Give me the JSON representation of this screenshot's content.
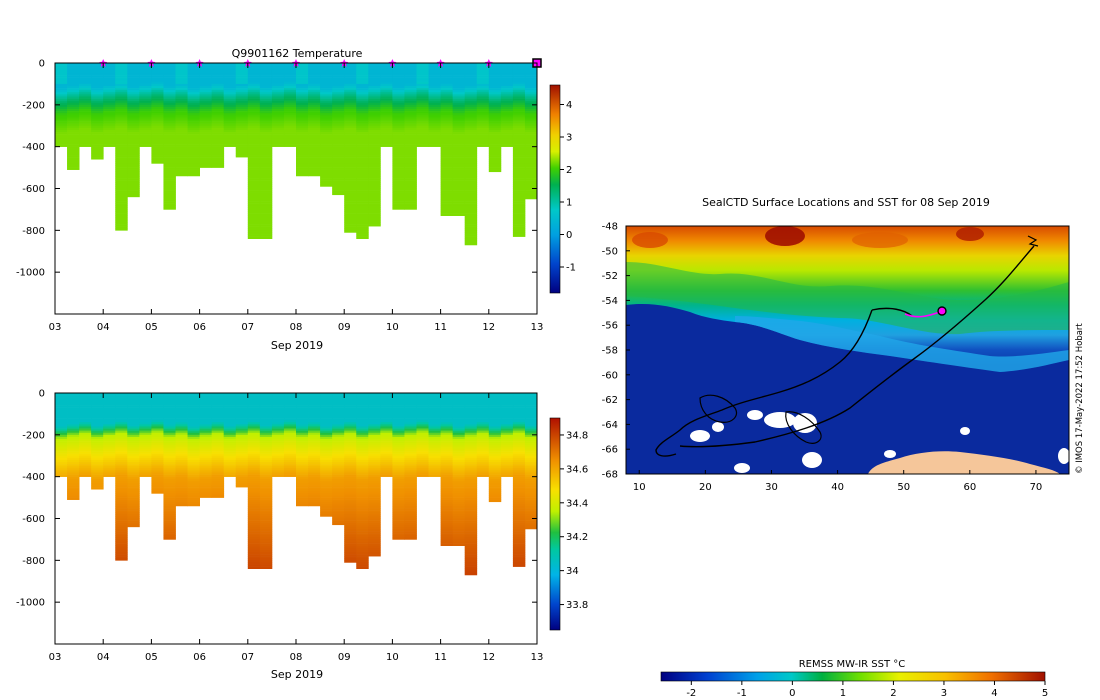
{
  "chart_data": [
    {
      "type": "heatmap",
      "title": "Q9901162  Temperature",
      "xlabel": "Sep 2019",
      "ylabel": "",
      "x_ticks": [
        "03",
        "04",
        "05",
        "06",
        "07",
        "08",
        "09",
        "10",
        "11",
        "12",
        "13"
      ],
      "y_ticks": [
        "0",
        "-200",
        "-400",
        "-600",
        "-800",
        "-1000"
      ],
      "xlim": [
        3,
        13
      ],
      "ylim": [
        -1200,
        0
      ],
      "profile_days": [
        3.0,
        3.25,
        3.5,
        3.75,
        4.0,
        4.25,
        4.5,
        4.75,
        5.0,
        5.25,
        5.5,
        5.75,
        6.0,
        6.25,
        6.5,
        6.75,
        7.0,
        7.25,
        7.5,
        7.75,
        8.0,
        8.25,
        8.5,
        8.75,
        9.0,
        9.25,
        9.5,
        9.75,
        10.0,
        10.25,
        10.5,
        10.75,
        11.0,
        11.25,
        11.5,
        11.75,
        12.0,
        12.25,
        12.5,
        12.75
      ],
      "profile_max_depth": [
        400,
        510,
        400,
        460,
        400,
        800,
        640,
        400,
        480,
        700,
        540,
        540,
        500,
        500,
        400,
        450,
        840,
        840,
        400,
        400,
        540,
        540,
        590,
        630,
        810,
        840,
        780,
        400,
        700,
        700,
        400,
        400,
        730,
        730,
        870,
        400,
        520,
        400,
        830,
        650
      ],
      "markers_days": [
        4,
        5,
        6,
        7,
        8,
        9,
        10,
        11,
        12
      ],
      "current_day": 13,
      "colorbar_ticks": [
        "-1",
        "0",
        "1",
        "2",
        "3",
        "4"
      ],
      "colorbar_range": [
        -1.8,
        4.6
      ]
    },
    {
      "type": "heatmap",
      "title": "",
      "xlabel": "Sep 2019",
      "ylabel": "",
      "x_ticks": [
        "03",
        "04",
        "05",
        "06",
        "07",
        "08",
        "09",
        "10",
        "11",
        "12",
        "13"
      ],
      "y_ticks": [
        "0",
        "-200",
        "-400",
        "-600",
        "-800",
        "-1000"
      ],
      "xlim": [
        3,
        13
      ],
      "ylim": [
        -1200,
        0
      ],
      "colorbar_ticks": [
        "33.8",
        "34",
        "34.2",
        "34.4",
        "34.6",
        "34.8"
      ],
      "colorbar_range": [
        33.65,
        34.9
      ]
    },
    {
      "type": "heatmap",
      "title": "SealCTD Surface Locations and SST for 08 Sep 2019",
      "xlabel": "",
      "ylabel": "",
      "x_ticks": [
        "10",
        "20",
        "30",
        "40",
        "50",
        "60",
        "70"
      ],
      "y_ticks": [
        "-48",
        "-50",
        "-52",
        "-54",
        "-56",
        "-58",
        "-60",
        "-62",
        "-64",
        "-66",
        "-68"
      ],
      "xlim": [
        8,
        75
      ],
      "ylim": [
        -68,
        -48
      ],
      "current_position": [
        56.0,
        -54.8
      ],
      "colorbar_label": "REMSS MW-IR SST °C",
      "colorbar_ticks": [
        "-2",
        "-1",
        "0",
        "1",
        "2",
        "3",
        "4",
        "5"
      ],
      "colorbar_range": [
        -2.6,
        5
      ]
    }
  ],
  "credit": "© IMOS 17-May-2022 17:52 Hobart"
}
